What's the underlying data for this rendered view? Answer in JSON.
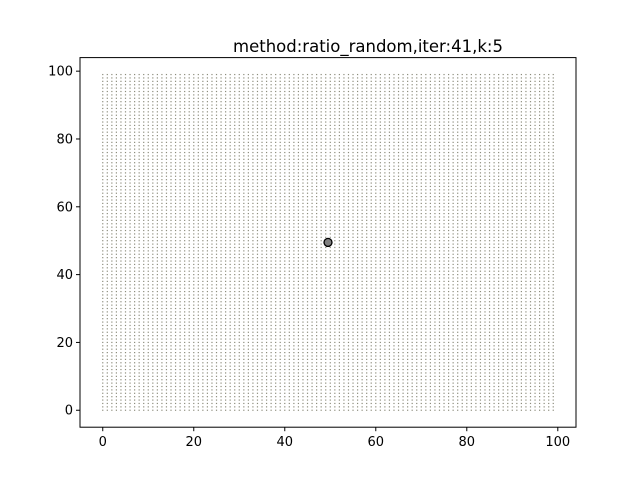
{
  "chart_data": {
    "type": "scatter",
    "title": "method:ratio_random,iter:41,k:5",
    "xlabel": "",
    "ylabel": "",
    "xlim": [
      -5,
      104
    ],
    "ylim": [
      -5,
      104
    ],
    "xticks": [
      0,
      20,
      40,
      60,
      80,
      100
    ],
    "yticks": [
      0,
      20,
      40,
      60,
      80,
      100
    ],
    "grid": false,
    "series": [
      {
        "points": {
          "x_range": [
            0,
            99
          ],
          "y_range": [
            0,
            99
          ],
          "step": 1
        },
        "color": "#8c8c7c",
        "marker": "dot"
      },
      {
        "points": [
          {
            "x": 49.5,
            "y": 49.5
          }
        ],
        "color": "#808080",
        "edge_color": "#000000",
        "marker": "circle"
      }
    ]
  }
}
